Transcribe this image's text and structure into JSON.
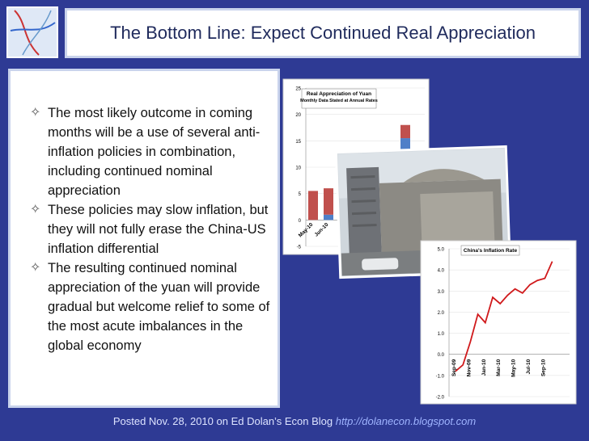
{
  "title": "The Bottom Line: Expect Continued Real Appreciation",
  "bullets": [
    "The most likely outcome in coming months will be a use of several anti-inflation policies in combination, including continued nominal appreciation",
    "These policies may slow inflation, but they will not fully erase the China-US inflation differential",
    "The resulting continued nominal appreciation of the yuan will provide gradual but welcome relief to some of the most acute imbalances in the global economy"
  ],
  "footer": {
    "text": "Posted Nov. 28, 2010 on Ed Dolan’s Econ Blog",
    "link": "http://dolanecon.blogspot.com"
  },
  "charts": [
    {
      "type": "stacked-bar",
      "title": "Real Appreciation of Yuan",
      "subtitle": "Monthly Data Stated at Annual Rates",
      "categories": [
        "May-10",
        "Jun-10",
        null,
        null,
        null,
        null,
        null
      ],
      "series": [
        {
          "color": "#4f7fc8",
          "values": [
            0,
            1,
            null,
            null,
            null,
            null,
            15.5
          ]
        },
        {
          "color": "#c0504d",
          "values": [
            5.5,
            5,
            null,
            null,
            null,
            null,
            2.5
          ]
        }
      ],
      "ylim": [
        -5,
        25
      ],
      "yticks": [
        -5,
        0,
        5,
        10,
        15,
        20,
        25
      ]
    },
    {
      "type": "line",
      "title": "China's Inflation Rate",
      "categories": [
        "Sep-09",
        null,
        "Nov-09",
        null,
        "Jan-10",
        null,
        "Mar-10",
        null,
        "May-10",
        null,
        "Jul-10",
        null,
        "Sep-10",
        null
      ],
      "series": [
        {
          "color": "#d0191b",
          "values": [
            -0.8,
            -0.5,
            0.6,
            1.9,
            1.5,
            2.7,
            2.4,
            2.8,
            3.1,
            2.9,
            3.3,
            3.5,
            3.6,
            4.4
          ]
        }
      ],
      "ylim": [
        -2,
        5
      ],
      "yticks": [
        {
          "value": -2,
          "label": "-2.0"
        },
        {
          "value": -1,
          "label": "-1.0"
        },
        {
          "value": 0,
          "label": "0.0"
        },
        {
          "value": 1,
          "label": "1.0"
        },
        {
          "value": 2,
          "label": "2.0"
        },
        {
          "value": 3,
          "label": "3.0"
        },
        {
          "value": 4,
          "label": "4.0"
        },
        {
          "value": 5,
          "label": "5.0"
        }
      ]
    }
  ]
}
